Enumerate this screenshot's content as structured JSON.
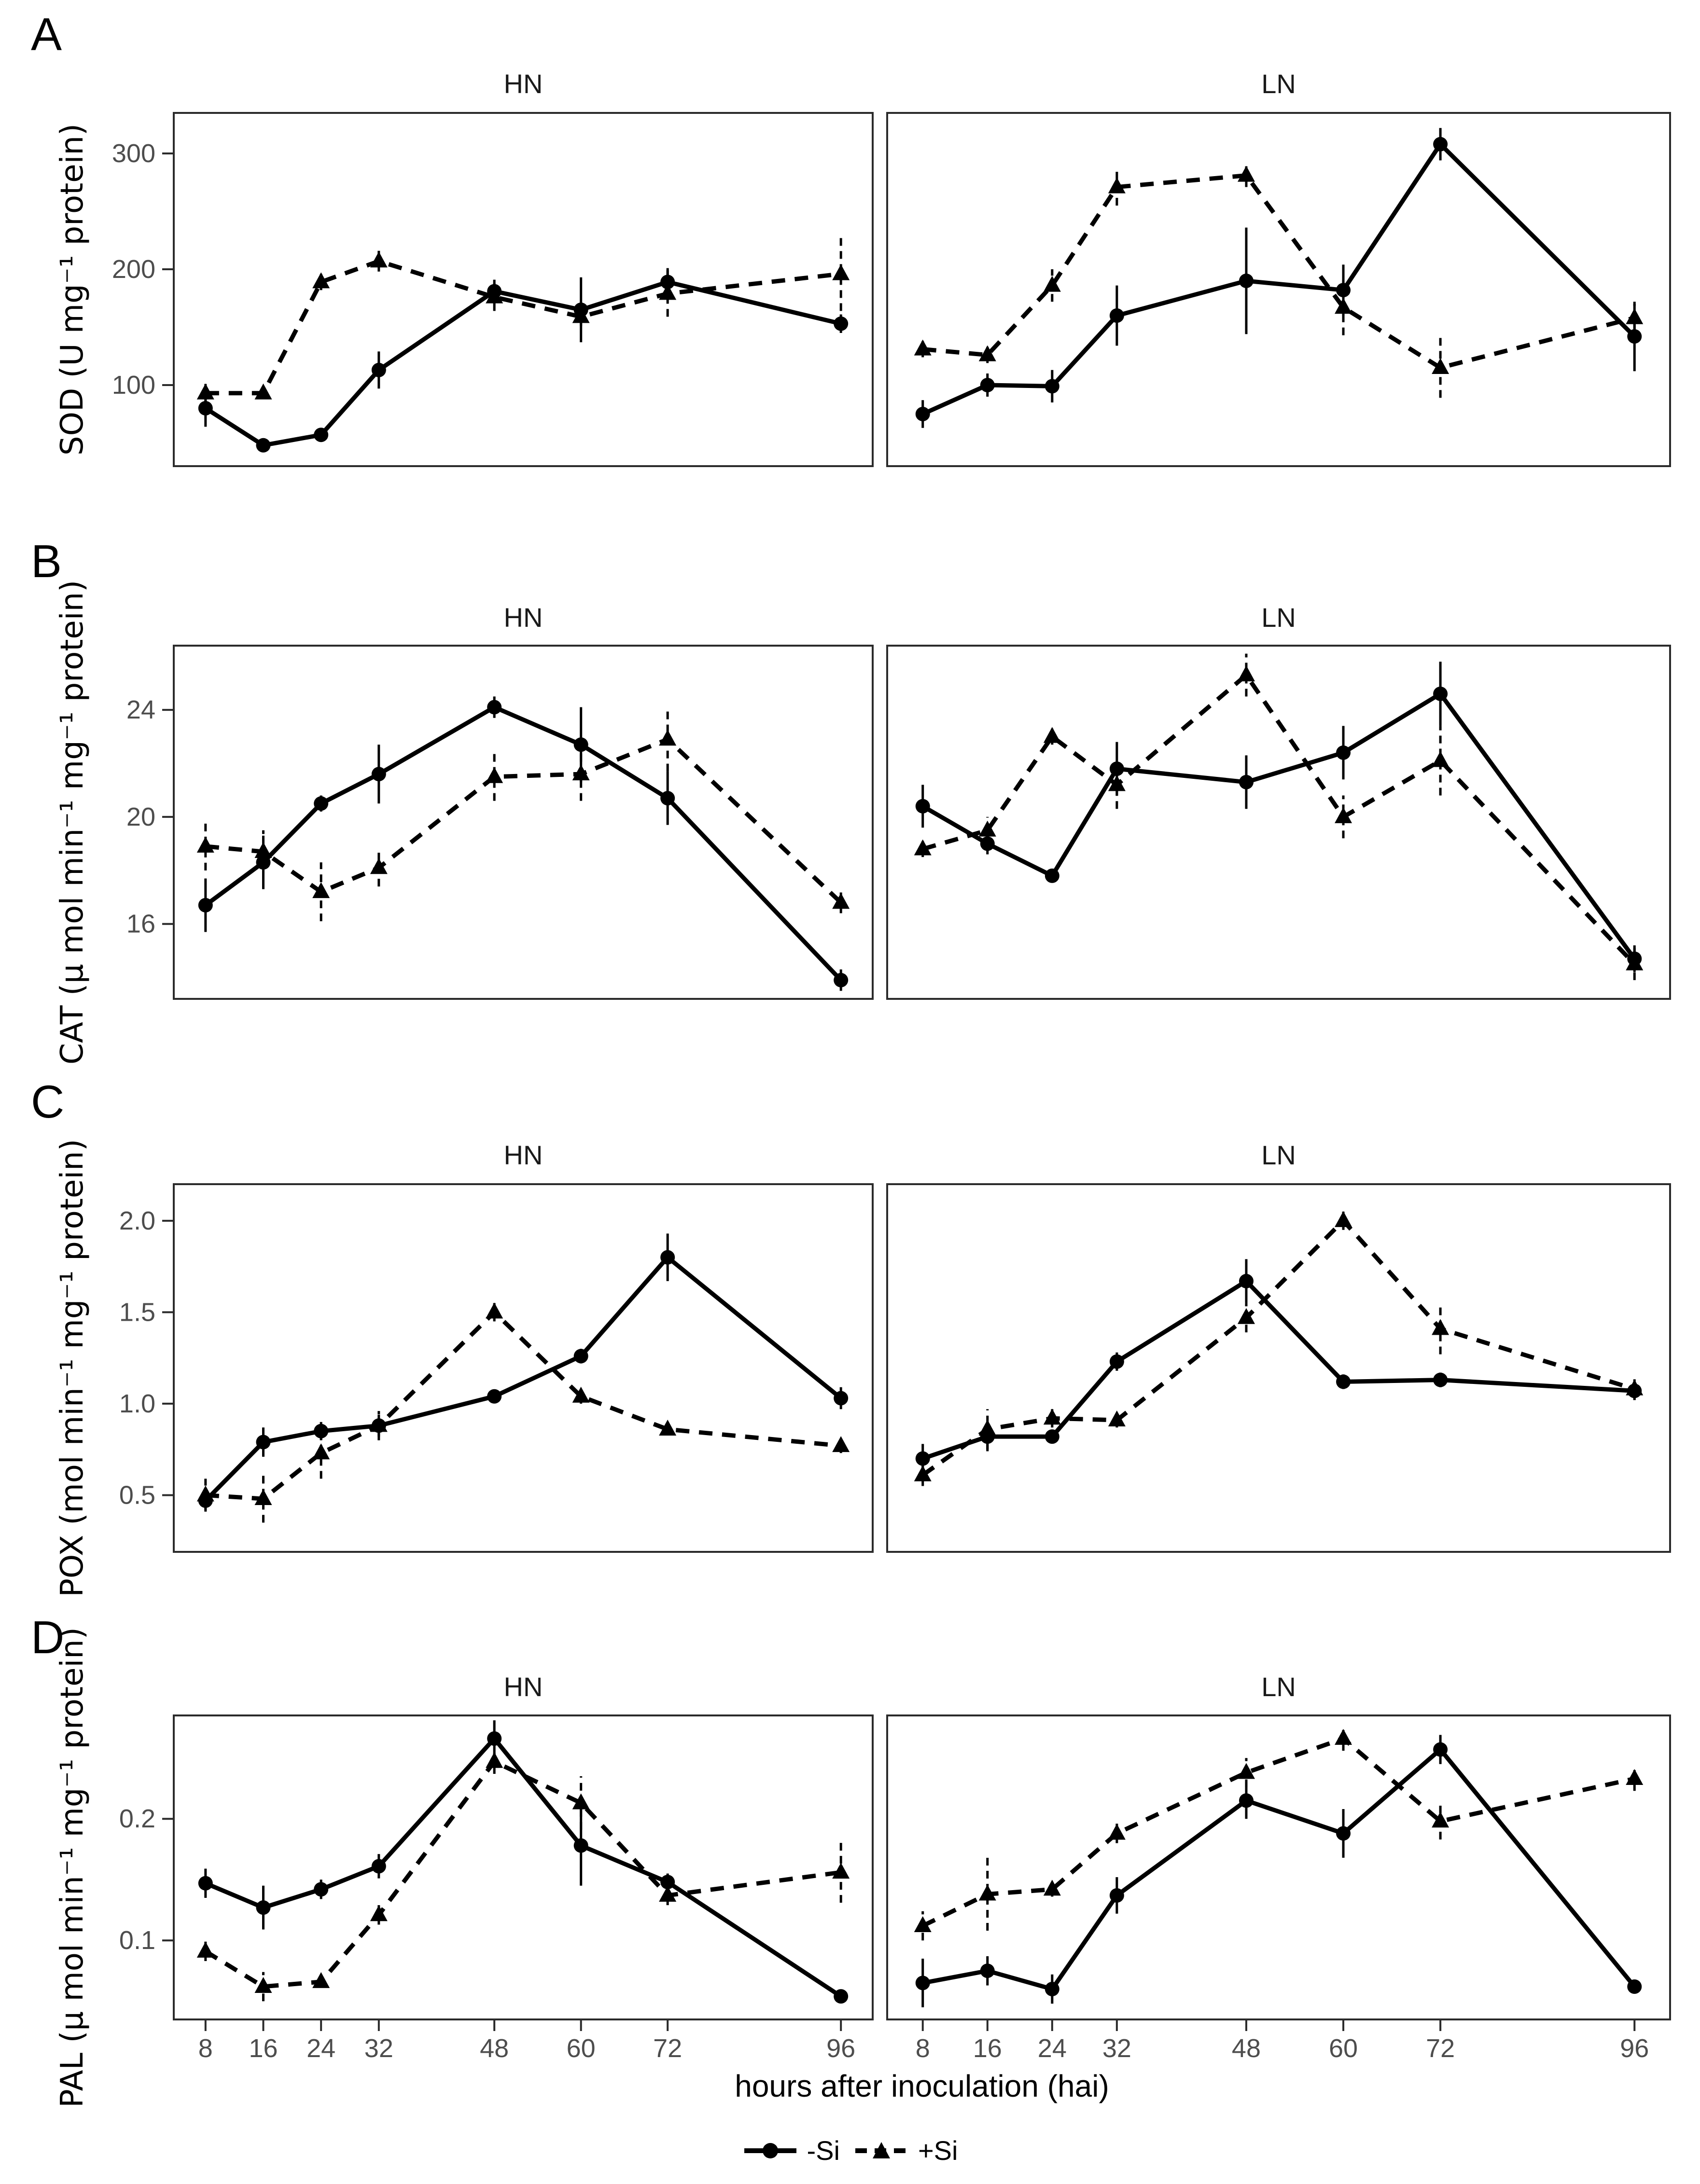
{
  "figure": {
    "panel_letters": [
      "A",
      "B",
      "C",
      "D"
    ],
    "x_axis_label": "hours after inoculation (hai)",
    "legend": [
      {
        "label": "-Si",
        "marker": "circle",
        "line": "solid"
      },
      {
        "label": "+Si",
        "marker": "triangle",
        "line": "dashed"
      }
    ],
    "colors": {
      "series": "#000000",
      "axis_text": "#4d4d4d",
      "panel_border": "#2b2b2b",
      "background": "#ffffff"
    }
  },
  "chart_data": [
    {
      "id": "A",
      "type": "line",
      "ylabel": "SOD (U mg⁻¹ protein)",
      "x": [
        8,
        16,
        24,
        32,
        48,
        60,
        72,
        96
      ],
      "x_tick_labels": [
        "8",
        "16",
        "24",
        "32",
        "48",
        "60",
        "72",
        "96"
      ],
      "xlim": [
        3.6,
        100.4
      ],
      "ylim": [
        30,
        335
      ],
      "y_ticks": [
        100,
        200,
        300
      ],
      "y_tick_labels": [
        "100",
        "200",
        "300"
      ],
      "legend_position": "bottom",
      "grid": false,
      "panels": [
        {
          "title": "HN",
          "series": [
            {
              "name": "-Si",
              "marker": "circle",
              "linetype": "solid",
              "values": [
                80,
                48,
                57,
                113,
                181,
                165,
                189,
                153
              ],
              "errors": [
                16,
                5,
                6,
                16,
                10,
                28,
                12,
                8
              ]
            },
            {
              "name": "+Si",
              "marker": "triangle",
              "linetype": "dashed",
              "values": [
                93,
                93,
                189,
                207,
                176,
                159,
                179,
                196
              ],
              "errors": [
                8,
                5,
                7,
                9,
                12,
                8,
                20,
                32
              ]
            }
          ]
        },
        {
          "title": "LN",
          "series": [
            {
              "name": "-Si",
              "marker": "circle",
              "linetype": "solid",
              "values": [
                75,
                100,
                99,
                160,
                190,
                182,
                308,
                142
              ],
              "errors": [
                12,
                10,
                14,
                26,
                46,
                22,
                14,
                30
              ]
            },
            {
              "name": "+Si",
              "marker": "triangle",
              "linetype": "dashed",
              "values": [
                131,
                126,
                186,
                271,
                281,
                167,
                115,
                158
              ],
              "errors": [
                7,
                7,
                14,
                16,
                10,
                24,
                26,
                12
              ]
            }
          ]
        }
      ]
    },
    {
      "id": "B",
      "type": "line",
      "ylabel": "CAT (µ mol min⁻¹ mg⁻¹ protein)",
      "x": [
        8,
        16,
        24,
        32,
        48,
        60,
        72,
        96
      ],
      "x_tick_labels": [
        "8",
        "16",
        "24",
        "32",
        "48",
        "60",
        "72",
        "96"
      ],
      "xlim": [
        3.6,
        100.4
      ],
      "ylim": [
        13.2,
        26.4
      ],
      "y_ticks": [
        16,
        20,
        24
      ],
      "y_tick_labels": [
        "16",
        "20",
        "24"
      ],
      "legend_position": "bottom",
      "grid": false,
      "panels": [
        {
          "title": "HN",
          "series": [
            {
              "name": "-Si",
              "marker": "circle",
              "linetype": "solid",
              "values": [
                16.7,
                18.3,
                20.5,
                21.6,
                24.1,
                22.7,
                20.7,
                13.9
              ],
              "errors": [
                1.0,
                1.0,
                0.3,
                1.1,
                0.4,
                1.4,
                1.0,
                0.4
              ]
            },
            {
              "name": "+Si",
              "marker": "triangle",
              "linetype": "dashed",
              "values": [
                18.9,
                18.7,
                17.2,
                18.1,
                21.5,
                21.6,
                22.9,
                16.8
              ],
              "errors": [
                0.9,
                0.8,
                1.1,
                0.7,
                0.9,
                1.0,
                1.2,
                0.4
              ]
            }
          ]
        },
        {
          "title": "LN",
          "series": [
            {
              "name": "-Si",
              "marker": "circle",
              "linetype": "solid",
              "values": [
                20.4,
                19.0,
                17.8,
                21.8,
                21.3,
                22.4,
                24.6,
                14.7
              ],
              "errors": [
                0.8,
                0.4,
                0.2,
                1.0,
                1.0,
                1.0,
                1.2,
                0.5
              ]
            },
            {
              "name": "+Si",
              "marker": "triangle",
              "linetype": "dashed",
              "values": [
                18.8,
                19.5,
                23.0,
                21.2,
                25.3,
                20.0,
                22.1,
                14.5
              ],
              "errors": [
                0.3,
                0.5,
                0.3,
                0.9,
                0.8,
                0.8,
                1.3,
                0.6
              ]
            }
          ]
        }
      ]
    },
    {
      "id": "C",
      "type": "line",
      "ylabel": "POX (mol min⁻¹ mg⁻¹ protein)",
      "x": [
        8,
        16,
        24,
        32,
        48,
        60,
        72,
        96
      ],
      "x_tick_labels": [
        "8",
        "16",
        "24",
        "32",
        "48",
        "60",
        "72",
        "96"
      ],
      "xlim": [
        3.6,
        100.4
      ],
      "ylim": [
        0.19,
        2.2
      ],
      "y_ticks": [
        0.5,
        1.0,
        1.5,
        2.0
      ],
      "y_tick_labels": [
        "0.5",
        "1.0",
        "1.5",
        "2.0"
      ],
      "legend_position": "bottom",
      "grid": false,
      "panels": [
        {
          "title": "HN",
          "series": [
            {
              "name": "-Si",
              "marker": "circle",
              "linetype": "solid",
              "values": [
                0.47,
                0.79,
                0.85,
                0.88,
                1.04,
                1.26,
                1.8,
                1.03
              ],
              "errors": [
                0.05,
                0.08,
                0.05,
                0.06,
                0.03,
                0.04,
                0.13,
                0.06
              ]
            },
            {
              "name": "+Si",
              "marker": "triangle",
              "linetype": "dashed",
              "values": [
                0.5,
                0.48,
                0.73,
                0.88,
                1.5,
                1.04,
                0.86,
                0.77
              ],
              "errors": [
                0.09,
                0.13,
                0.14,
                0.08,
                0.05,
                0.04,
                0.03,
                0.04
              ]
            }
          ]
        },
        {
          "title": "LN",
          "series": [
            {
              "name": "-Si",
              "marker": "circle",
              "linetype": "solid",
              "values": [
                0.7,
                0.82,
                0.82,
                1.23,
                1.67,
                1.12,
                1.13,
                1.07
              ],
              "errors": [
                0.08,
                0.08,
                0.03,
                0.05,
                0.12,
                0.04,
                0.04,
                0.05
              ]
            },
            {
              "name": "+Si",
              "marker": "triangle",
              "linetype": "dashed",
              "values": [
                0.61,
                0.86,
                0.92,
                0.91,
                1.47,
                2.0,
                1.41,
                1.08
              ],
              "errors": [
                0.06,
                0.11,
                0.05,
                0.04,
                0.08,
                0.05,
                0.14,
                0.06
              ]
            }
          ]
        }
      ]
    },
    {
      "id": "D",
      "type": "line",
      "ylabel": "PAL (µ mol min⁻¹ mg⁻¹ protein)",
      "x": [
        8,
        16,
        24,
        32,
        48,
        60,
        72,
        96
      ],
      "x_tick_labels": [
        "8",
        "16",
        "24",
        "32",
        "48",
        "60",
        "72",
        "96"
      ],
      "xlim": [
        3.6,
        100.4
      ],
      "ylim": [
        0.035,
        0.285
      ],
      "y_ticks": [
        0.1,
        0.2
      ],
      "y_tick_labels": [
        "0.1",
        "0.2"
      ],
      "legend_position": "bottom",
      "grid": false,
      "panels": [
        {
          "title": "HN",
          "series": [
            {
              "name": "-Si",
              "marker": "circle",
              "linetype": "solid",
              "values": [
                0.147,
                0.127,
                0.142,
                0.161,
                0.266,
                0.178,
                0.148,
                0.054
              ],
              "errors": [
                0.012,
                0.018,
                0.008,
                0.01,
                0.015,
                0.033,
                0.007,
                0.004
              ]
            },
            {
              "name": "+Si",
              "marker": "triangle",
              "linetype": "dashed",
              "values": [
                0.091,
                0.062,
                0.066,
                0.121,
                0.247,
                0.213,
                0.137,
                0.156
              ],
              "errors": [
                0.008,
                0.012,
                0.005,
                0.008,
                0.01,
                0.022,
                0.008,
                0.025
              ]
            }
          ]
        },
        {
          "title": "LN",
          "series": [
            {
              "name": "-Si",
              "marker": "circle",
              "linetype": "solid",
              "values": [
                0.065,
                0.075,
                0.06,
                0.137,
                0.215,
                0.188,
                0.257,
                0.062
              ],
              "errors": [
                0.02,
                0.012,
                0.012,
                0.015,
                0.015,
                0.02,
                0.012,
                0.005
              ]
            },
            {
              "name": "+Si",
              "marker": "triangle",
              "linetype": "dashed",
              "values": [
                0.112,
                0.138,
                0.142,
                0.188,
                0.238,
                0.266,
                0.198,
                0.233
              ],
              "errors": [
                0.012,
                0.03,
                0.006,
                0.008,
                0.012,
                0.01,
                0.015,
                0.01
              ]
            }
          ]
        }
      ]
    }
  ]
}
